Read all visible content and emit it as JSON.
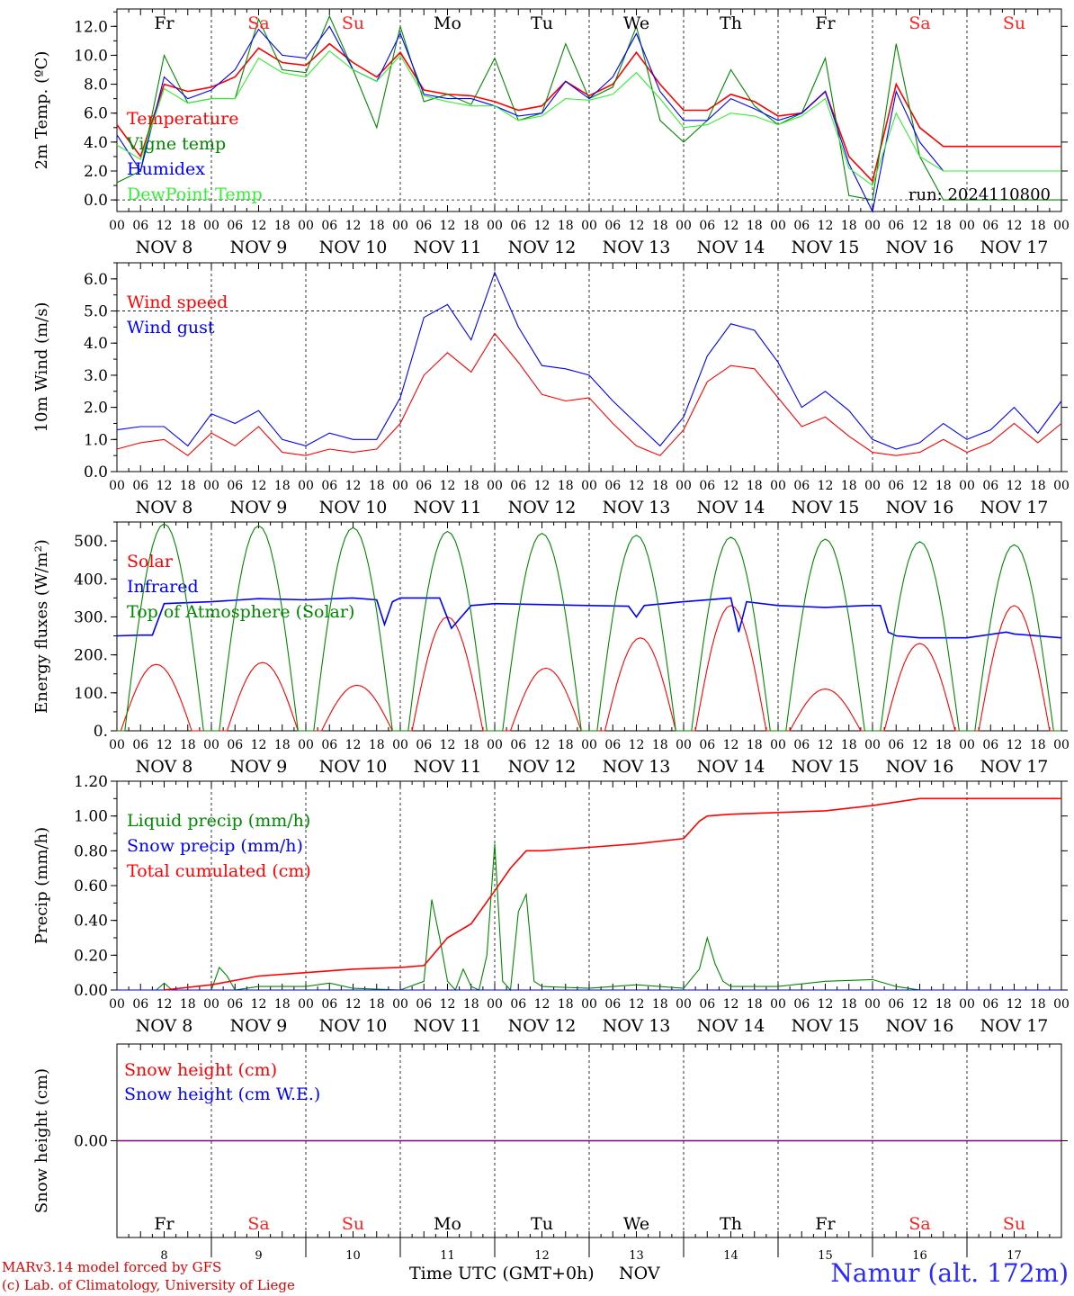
{
  "footer": {
    "model": "MARv3.14 model forced by GFS",
    "copyright": "(c) Lab. of Climatology, University of Liege",
    "xlabel": "Time UTC (GMT+0h)",
    "month": "NOV",
    "station": "Namur (alt. 172m)"
  },
  "colors": {
    "red": "#ff0000",
    "green": "#008800",
    "blue": "#0000ff",
    "lightgreen": "#33ee33",
    "purple": "#800080",
    "weekend": "#ff2222"
  },
  "chart_data": [
    {
      "type": "line",
      "id": "temp",
      "ylabel": "2m Temp. (ºC)",
      "ylim": [
        -0.8,
        13.2
      ],
      "yticks": [
        0.0,
        2.0,
        4.0,
        6.0,
        8.0,
        10.0,
        12.0
      ],
      "ytick_labels": [
        "0.0",
        "2.0",
        "4.0",
        "6.0",
        "8.0",
        "10.0",
        "12.0"
      ],
      "hline": 0,
      "annotation": "run: 2024110800",
      "day_labels": [
        "Fr",
        "Sa",
        "Su",
        "Mo",
        "Tu",
        "We",
        "Th",
        "Fr",
        "Sa",
        "Su"
      ],
      "x_hours": [
        0,
        6,
        12,
        18,
        24,
        30,
        36,
        42,
        48,
        54,
        60,
        66,
        72,
        78,
        84,
        90,
        96,
        102,
        108,
        114,
        120,
        126,
        132,
        138,
        144,
        150,
        156,
        162,
        168,
        174,
        180,
        186,
        192,
        198,
        204,
        210,
        216,
        222,
        228,
        234,
        240
      ],
      "series": [
        {
          "name": "Temperature",
          "color": "#ff0000",
          "values": [
            5.2,
            3.0,
            8.0,
            7.5,
            7.8,
            8.5,
            10.5,
            9.5,
            9.3,
            10.8,
            9.5,
            8.5,
            10.2,
            7.6,
            7.3,
            7.2,
            6.8,
            6.2,
            6.5,
            8.2,
            7.2,
            8.0,
            10.2,
            8.0,
            6.2,
            6.2,
            7.3,
            6.8,
            5.8,
            6.0,
            7.5,
            3.0,
            1.3,
            8.0,
            5.0,
            3.7,
            3.7,
            3.7,
            3.7,
            3.7,
            3.7
          ]
        },
        {
          "name": "Vigne temp",
          "color": "#008800",
          "values": [
            1.2,
            2.0,
            10.0,
            6.7,
            7.0,
            7.0,
            12.5,
            9.0,
            8.8,
            12.7,
            9.0,
            5.0,
            12.0,
            6.8,
            7.3,
            6.6,
            9.8,
            5.5,
            6.0,
            10.8,
            7.0,
            7.8,
            12.0,
            5.5,
            4.0,
            5.5,
            9.0,
            6.5,
            5.2,
            6.0,
            9.8,
            0.3,
            0.0,
            10.8,
            3.0,
            0.0,
            0.0,
            0.0,
            0.0,
            0.0,
            0.0
          ]
        },
        {
          "name": "Humidex",
          "color": "#0000ff",
          "values": [
            4.5,
            2.0,
            8.5,
            7.0,
            7.6,
            9.0,
            11.8,
            10.0,
            9.8,
            12.0,
            9.0,
            8.2,
            11.5,
            7.3,
            7.0,
            7.0,
            6.5,
            5.8,
            6.0,
            8.2,
            7.0,
            8.5,
            11.5,
            7.5,
            5.5,
            5.5,
            7.0,
            6.3,
            5.5,
            6.0,
            7.5,
            2.5,
            -0.8,
            7.5,
            4.0,
            2.0,
            2.0,
            2.0,
            2.0,
            2.0,
            2.0
          ]
        },
        {
          "name": "DewPoint Temp",
          "color": "#33ee33",
          "values": [
            3.8,
            2.8,
            7.7,
            6.7,
            7.0,
            7.0,
            9.8,
            8.8,
            8.5,
            10.3,
            9.0,
            8.2,
            10.0,
            7.2,
            6.8,
            6.5,
            6.5,
            5.5,
            5.8,
            7.0,
            6.9,
            7.3,
            8.8,
            7.0,
            5.0,
            5.2,
            6.0,
            5.8,
            5.2,
            5.8,
            7.0,
            2.2,
            1.0,
            6.0,
            3.0,
            2.0,
            2.0,
            2.0,
            2.0,
            2.0,
            2.0
          ]
        }
      ]
    },
    {
      "type": "line",
      "id": "wind",
      "ylabel": "10m Wind (m/s)",
      "ylim": [
        0,
        6.5
      ],
      "yticks": [
        0.0,
        1.0,
        2.0,
        3.0,
        4.0,
        5.0,
        6.0
      ],
      "ytick_labels": [
        "0.0",
        "1.0",
        "2.0",
        "3.0",
        "4.0",
        "5.0",
        "6.0"
      ],
      "hline": 5.0,
      "x_hours": [
        0,
        6,
        12,
        18,
        24,
        30,
        36,
        42,
        48,
        54,
        60,
        66,
        72,
        78,
        84,
        90,
        96,
        102,
        108,
        114,
        120,
        126,
        132,
        138,
        144,
        150,
        156,
        162,
        168,
        174,
        180,
        186,
        192,
        198,
        204,
        210,
        216,
        222,
        228,
        234,
        240
      ],
      "series": [
        {
          "name": "Wind speed",
          "color": "#ff0000",
          "values": [
            0.7,
            0.9,
            1.0,
            0.5,
            1.2,
            0.8,
            1.4,
            0.6,
            0.5,
            0.7,
            0.6,
            0.7,
            1.5,
            3.0,
            3.7,
            3.1,
            4.3,
            3.4,
            2.4,
            2.2,
            2.3,
            1.5,
            0.8,
            0.5,
            1.3,
            2.8,
            3.3,
            3.2,
            2.3,
            1.4,
            1.7,
            1.1,
            0.6,
            0.5,
            0.6,
            1.0,
            0.6,
            0.9,
            1.5,
            0.9,
            1.5
          ]
        },
        {
          "name": "Wind gust",
          "color": "#0000ff",
          "values": [
            1.3,
            1.4,
            1.4,
            0.8,
            1.8,
            1.5,
            1.9,
            1.0,
            0.8,
            1.2,
            1.0,
            1.0,
            2.3,
            4.8,
            5.2,
            4.1,
            6.2,
            4.5,
            3.3,
            3.2,
            3.0,
            2.2,
            1.5,
            0.8,
            1.7,
            3.6,
            4.6,
            4.4,
            3.4,
            2.0,
            2.5,
            1.9,
            1.0,
            0.7,
            0.9,
            1.5,
            1.0,
            1.3,
            2.0,
            1.2,
            2.2
          ]
        }
      ]
    },
    {
      "type": "line",
      "id": "energy",
      "ylabel": "Energy fluxes (W/m²)",
      "ylim": [
        0,
        550
      ],
      "yticks": [
        0,
        100,
        200,
        300,
        400,
        500
      ],
      "ytick_labels": [
        "0.",
        "100.",
        "200.",
        "300.",
        "400.",
        "500."
      ],
      "series": [
        {
          "name": "Solar",
          "color": "#ff0000",
          "peaks": [
            [
              10,
              175
            ],
            [
              37,
              180
            ],
            [
              61,
              120
            ],
            [
              84,
              300
            ],
            [
              109,
              165
            ],
            [
              133,
              245
            ],
            [
              156,
              330
            ],
            [
              180,
              110
            ],
            [
              204,
              230
            ],
            [
              228,
              330
            ]
          ],
          "width": 9
        },
        {
          "name": "Infrared",
          "color": "#0000ff",
          "x_hours": [
            0,
            6,
            9,
            12,
            24,
            36,
            48,
            60,
            66,
            68,
            70,
            72,
            82,
            85,
            90,
            96,
            120,
            130,
            132,
            134,
            144,
            156,
            158,
            160,
            168,
            180,
            190,
            194,
            196,
            198,
            204,
            216,
            226,
            228,
            240
          ],
          "values": [
            250,
            252,
            252,
            335,
            340,
            348,
            345,
            350,
            345,
            280,
            340,
            350,
            350,
            270,
            330,
            335,
            330,
            328,
            300,
            330,
            340,
            350,
            260,
            340,
            330,
            325,
            330,
            330,
            260,
            250,
            245,
            245,
            260,
            255,
            245
          ]
        },
        {
          "name": "Top of Atmosphere (Solar)",
          "color": "#008800",
          "peaks": [
            [
              12,
              545
            ],
            [
              36,
              540
            ],
            [
              60,
              535
            ],
            [
              84,
              525
            ],
            [
              108,
              520
            ],
            [
              132,
              515
            ],
            [
              156,
              510
            ],
            [
              180,
              505
            ],
            [
              204,
              498
            ],
            [
              228,
              490
            ]
          ],
          "width": 10
        }
      ]
    },
    {
      "type": "line",
      "id": "precip",
      "ylabel": "Precip (mm/h)",
      "ylim": [
        0,
        1.2
      ],
      "yticks": [
        0.0,
        0.2,
        0.4,
        0.6,
        0.8,
        1.0,
        1.2
      ],
      "ytick_labels": [
        "0.00",
        "0.20",
        "0.40",
        "0.60",
        "0.80",
        "1.00",
        "1.20"
      ],
      "series": [
        {
          "name": "Liquid precip (mm/h)",
          "color": "#008800",
          "x_hours": [
            0,
            10,
            12,
            14,
            16,
            24,
            26,
            28,
            30,
            36,
            48,
            54,
            60,
            72,
            78,
            80,
            82,
            84,
            86,
            88,
            90,
            92,
            94,
            96,
            98,
            100,
            102,
            104,
            106,
            108,
            120,
            132,
            144,
            148,
            150,
            152,
            154,
            156,
            168,
            180,
            192,
            198,
            204,
            216,
            240
          ],
          "values": [
            0,
            0,
            0.04,
            0,
            0,
            0,
            0.13,
            0.08,
            0,
            0.02,
            0.02,
            0.04,
            0.01,
            0,
            0.05,
            0.52,
            0.3,
            0.05,
            0,
            0.12,
            0.02,
            0,
            0.2,
            0.84,
            0.05,
            0,
            0.45,
            0.55,
            0.05,
            0.02,
            0.01,
            0.03,
            0.01,
            0.12,
            0.3,
            0.15,
            0.05,
            0.02,
            0.02,
            0.05,
            0.06,
            0.02,
            0,
            0,
            0
          ]
        },
        {
          "name": "Snow precip (mm/h)",
          "color": "#0000ff",
          "x_hours": [
            0,
            240
          ],
          "values": [
            0,
            0
          ]
        },
        {
          "name": "Total cumulated (cm)",
          "color": "#ff0000",
          "x_hours": [
            12,
            24,
            36,
            48,
            60,
            72,
            78,
            84,
            90,
            96,
            100,
            104,
            108,
            120,
            132,
            144,
            148,
            150,
            156,
            168,
            180,
            192,
            204,
            216,
            240
          ],
          "values": [
            0,
            0.03,
            0.08,
            0.1,
            0.12,
            0.13,
            0.14,
            0.3,
            0.38,
            0.57,
            0.7,
            0.8,
            0.8,
            0.82,
            0.84,
            0.87,
            0.97,
            1.0,
            1.01,
            1.02,
            1.03,
            1.06,
            1.1,
            1.1,
            1.1
          ]
        }
      ]
    },
    {
      "type": "line",
      "id": "snow",
      "ylabel": "Snow height (cm)",
      "ylim": [
        -1,
        1
      ],
      "yticks": [
        0
      ],
      "ytick_labels": [
        "0.00"
      ],
      "series": [
        {
          "name": "Snow height (cm)",
          "color": "#ff0000",
          "x_hours": [
            0,
            240
          ],
          "values": [
            0,
            0
          ]
        },
        {
          "name": "Snow height (cm W.E.)",
          "color": "#0000ff",
          "x_hours": [
            0,
            240
          ],
          "values": [
            0,
            0
          ]
        }
      ],
      "day_labels": [
        "Fr",
        "Sa",
        "Su",
        "Mo",
        "Tu",
        "We",
        "Th",
        "Fr",
        "Sa",
        "Su"
      ],
      "day_numbers": [
        "8",
        "9",
        "10",
        "11",
        "12",
        "13",
        "14",
        "15",
        "16",
        "17"
      ]
    }
  ],
  "x_axis": {
    "hour_labels": [
      "00",
      "06",
      "12",
      "18"
    ],
    "last_hour_label": "00",
    "date_labels": [
      "NOV  8",
      "NOV  9",
      "NOV 10",
      "NOV 11",
      "NOV 12",
      "NOV 13",
      "NOV 14",
      "NOV 15",
      "NOV 16",
      "NOV 17"
    ],
    "weekend_days": [
      1,
      2,
      8,
      9
    ]
  }
}
